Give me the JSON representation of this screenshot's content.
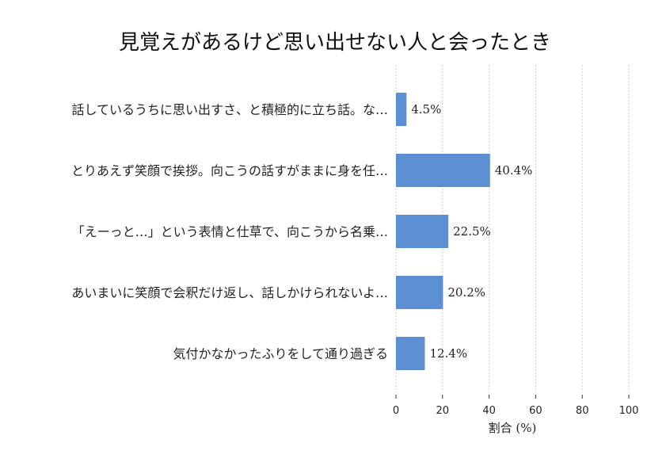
{
  "chart_data": {
    "type": "bar",
    "orientation": "horizontal",
    "title": "見覚えがあるけど思い出せない人と会ったとき",
    "xlabel": "割合 (%)",
    "ylabel": "",
    "xlim": [
      0,
      100
    ],
    "xticks": [
      0,
      20,
      40,
      60,
      80,
      100
    ],
    "grid": true,
    "categories": [
      "話しているうちに思い出すさ、と積極的に立ち話。な…",
      "とりあえず笑顔で挨拶。向こうの話すがままに身を任…",
      "「えーっと…」という表情と仕草で、向こうから名乗…",
      "あいまいに笑顔で会釈だけ返し、話しかけられないよ…",
      "気付かなかったふりをして通り過ぎる"
    ],
    "values": [
      4.5,
      40.4,
      22.5,
      20.2,
      12.4
    ],
    "value_labels": [
      "4.5%",
      "40.4%",
      "22.5%",
      "20.2%",
      "12.4%"
    ],
    "bar_color": "#5b8fd1"
  }
}
